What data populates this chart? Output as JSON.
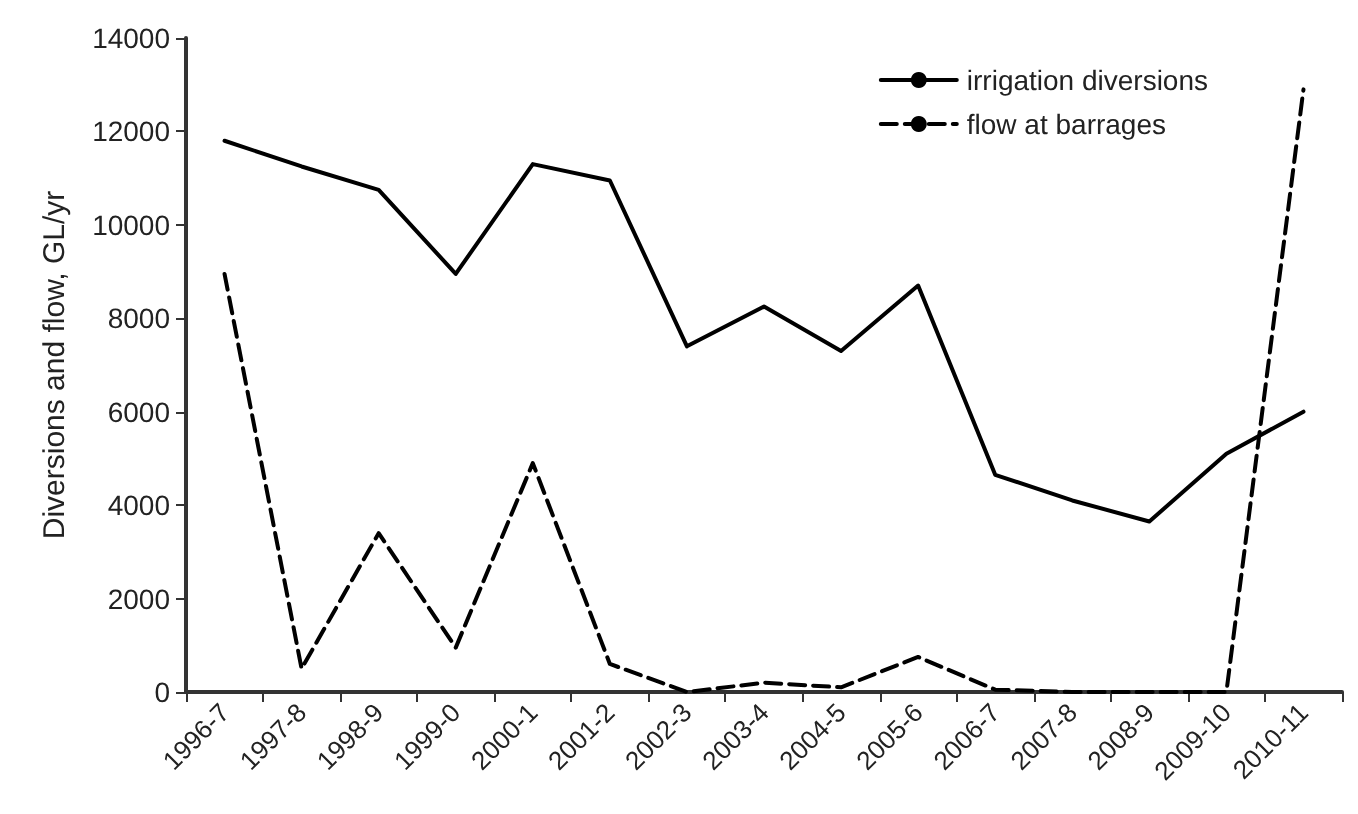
{
  "chart_data": {
    "type": "line",
    "ylabel": "Diversions and flow, GL/yr",
    "categories": [
      "1996-7",
      "1997-8",
      "1998-9",
      "1999-0",
      "2000-1",
      "2001-2",
      "2002-3",
      "2003-4",
      "2004-5",
      "2005-6",
      "2006-7",
      "2007-8",
      "2008-9",
      "2009-10",
      "2010-11"
    ],
    "series": [
      {
        "name": "irrigation diversions",
        "color": "#000000",
        "line_style": "solid",
        "values": [
          11800,
          11250,
          10750,
          8950,
          11300,
          10950,
          7400,
          8250,
          7300,
          8700,
          4650,
          4100,
          3650,
          5100,
          6000
        ]
      },
      {
        "name": "flow at barrages",
        "color": "#000000",
        "line_style": "dashed",
        "values": [
          8950,
          500,
          3400,
          950,
          4900,
          600,
          0,
          200,
          100,
          750,
          50,
          0,
          0,
          0,
          12900
        ]
      }
    ],
    "ylim": [
      0,
      14000
    ],
    "yticks": [
      0,
      2000,
      4000,
      6000,
      8000,
      10000,
      12000,
      14000
    ],
    "grid": false,
    "legend": "top right",
    "marker": "none"
  }
}
